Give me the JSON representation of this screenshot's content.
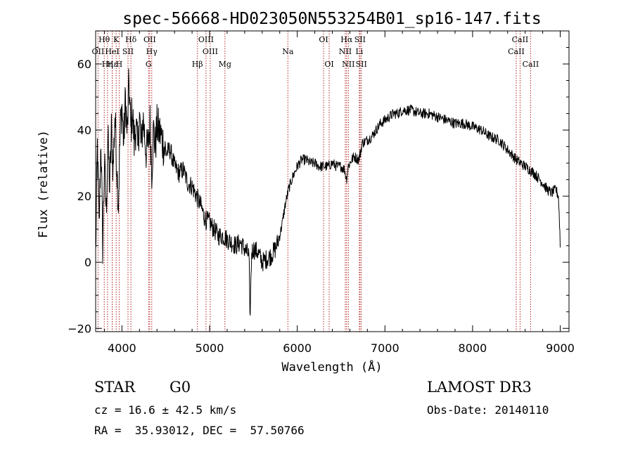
{
  "chart_data": {
    "type": "line",
    "title": "spec-56668-HD023050N553254B01_sp16-147.fits",
    "xlabel": "Wavelength (Å)",
    "ylabel": "Flux (relative)",
    "xlim": [
      3700,
      9100
    ],
    "ylim": [
      -21,
      70
    ],
    "x_ticks": [
      4000,
      5000,
      6000,
      7000,
      8000,
      9000
    ],
    "y_ticks": [
      -20,
      0,
      20,
      40,
      60
    ],
    "x_tick_labels": [
      "4000",
      "5000",
      "6000",
      "7000",
      "8000",
      "9000"
    ],
    "y_tick_labels": [
      "−20",
      "0",
      "20",
      "40",
      "60"
    ],
    "grid": false,
    "line_color": "#000000",
    "marker_color": "#b22222",
    "spectrum_anchors": [
      [
        3700,
        2
      ],
      [
        3720,
        35
      ],
      [
        3740,
        10
      ],
      [
        3760,
        38
      ],
      [
        3780,
        5
      ],
      [
        3800,
        30
      ],
      [
        3820,
        15
      ],
      [
        3840,
        38
      ],
      [
        3860,
        22
      ],
      [
        3880,
        40
      ],
      [
        3900,
        28
      ],
      [
        3920,
        45
      ],
      [
        3940,
        30
      ],
      [
        3960,
        18
      ],
      [
        3980,
        40
      ],
      [
        4000,
        47
      ],
      [
        4020,
        36
      ],
      [
        4040,
        50
      ],
      [
        4060,
        38
      ],
      [
        4080,
        55
      ],
      [
        4100,
        40
      ],
      [
        4120,
        46
      ],
      [
        4140,
        36
      ],
      [
        4160,
        42
      ],
      [
        4180,
        34
      ],
      [
        4200,
        45
      ],
      [
        4220,
        34
      ],
      [
        4240,
        44
      ],
      [
        4260,
        38
      ],
      [
        4280,
        33
      ],
      [
        4300,
        36
      ],
      [
        4320,
        42
      ],
      [
        4340,
        28
      ],
      [
        4360,
        40
      ],
      [
        4380,
        35
      ],
      [
        4400,
        41
      ],
      [
        4450,
        38
      ],
      [
        4500,
        33
      ],
      [
        4550,
        34
      ],
      [
        4600,
        29
      ],
      [
        4650,
        27
      ],
      [
        4700,
        28
      ],
      [
        4750,
        24
      ],
      [
        4800,
        23
      ],
      [
        4850,
        20
      ],
      [
        4900,
        17
      ],
      [
        4950,
        13
      ],
      [
        5000,
        12
      ],
      [
        5050,
        10
      ],
      [
        5100,
        8
      ],
      [
        5150,
        8
      ],
      [
        5200,
        7
      ],
      [
        5250,
        6
      ],
      [
        5300,
        5
      ],
      [
        5350,
        6
      ],
      [
        5400,
        4
      ],
      [
        5450,
        2
      ],
      [
        5460,
        -18
      ],
      [
        5480,
        3
      ],
      [
        5500,
        4
      ],
      [
        5550,
        3
      ],
      [
        5600,
        0
      ],
      [
        5650,
        1
      ],
      [
        5700,
        2
      ],
      [
        5750,
        4
      ],
      [
        5800,
        8
      ],
      [
        5830,
        12
      ],
      [
        5860,
        17
      ],
      [
        5900,
        22
      ],
      [
        5950,
        26
      ],
      [
        6000,
        29
      ],
      [
        6050,
        31
      ],
      [
        6100,
        31
      ],
      [
        6150,
        30
      ],
      [
        6200,
        30
      ],
      [
        6250,
        29
      ],
      [
        6300,
        29
      ],
      [
        6350,
        29
      ],
      [
        6400,
        30
      ],
      [
        6450,
        29
      ],
      [
        6500,
        29
      ],
      [
        6540,
        28
      ],
      [
        6562,
        25
      ],
      [
        6580,
        29
      ],
      [
        6620,
        31
      ],
      [
        6650,
        32
      ],
      [
        6700,
        31
      ],
      [
        6720,
        33
      ],
      [
        6740,
        36
      ],
      [
        6800,
        37
      ],
      [
        6850,
        38
      ],
      [
        6900,
        40
      ],
      [
        6950,
        42
      ],
      [
        7000,
        43
      ],
      [
        7050,
        44
      ],
      [
        7100,
        45
      ],
      [
        7150,
        45
      ],
      [
        7200,
        46
      ],
      [
        7300,
        46
      ],
      [
        7400,
        45
      ],
      [
        7500,
        45
      ],
      [
        7600,
        44
      ],
      [
        7700,
        43
      ],
      [
        7800,
        42
      ],
      [
        7900,
        42
      ],
      [
        8000,
        41
      ],
      [
        8100,
        40
      ],
      [
        8200,
        38
      ],
      [
        8300,
        37
      ],
      [
        8400,
        34
      ],
      [
        8500,
        31
      ],
      [
        8600,
        29
      ],
      [
        8700,
        27
      ],
      [
        8800,
        24
      ],
      [
        8850,
        22
      ],
      [
        8900,
        21
      ],
      [
        8950,
        22
      ],
      [
        8980,
        20
      ],
      [
        8995,
        10
      ],
      [
        9000,
        5
      ]
    ],
    "annotations": [
      {
        "label": "Hθ",
        "x": 3798,
        "row": 0
      },
      {
        "label": "OII",
        "x": 3727,
        "row": 1
      },
      {
        "label": "Hη",
        "x": 3835,
        "row": 2
      },
      {
        "label": "Hε",
        "x": 3889,
        "row": 2
      },
      {
        "label": "K",
        "x": 3934,
        "row": 0
      },
      {
        "label": "HeI",
        "x": 3889,
        "row": 1
      },
      {
        "label": "SII",
        "x": 4069,
        "row": 1
      },
      {
        "label": "H",
        "x": 3968,
        "row": 2
      },
      {
        "label": "Hδ",
        "x": 4102,
        "row": 0
      },
      {
        "label": "OII",
        "x": 4317,
        "row": 0
      },
      {
        "label": "Hγ",
        "x": 4340,
        "row": 1
      },
      {
        "label": "G",
        "x": 4304,
        "row": 2
      },
      {
        "label": "OIII",
        "x": 4959,
        "row": 0
      },
      {
        "label": "OIII",
        "x": 5007,
        "row": 1
      },
      {
        "label": "Hβ",
        "x": 4861,
        "row": 2
      },
      {
        "label": "Mg",
        "x": 5175,
        "row": 2
      },
      {
        "label": "Na",
        "x": 5893,
        "row": 1
      },
      {
        "label": "OI",
        "x": 6300,
        "row": 0
      },
      {
        "label": "OI",
        "x": 6364,
        "row": 2
      },
      {
        "label": "Hα",
        "x": 6563,
        "row": 0
      },
      {
        "label": "NII",
        "x": 6548,
        "row": 1
      },
      {
        "label": "NII",
        "x": 6583,
        "row": 2
      },
      {
        "label": "SII",
        "x": 6716,
        "row": 0
      },
      {
        "label": "Li",
        "x": 6708,
        "row": 1
      },
      {
        "label": "SII",
        "x": 6731,
        "row": 2
      },
      {
        "label": "CaII",
        "x": 8542,
        "row": 0
      },
      {
        "label": "CaII",
        "x": 8498,
        "row": 1
      },
      {
        "label": "CaII",
        "x": 8662,
        "row": 2
      }
    ]
  },
  "info": {
    "object_class": "STAR",
    "subclass": "G0",
    "survey": "LAMOST DR3",
    "cz": "cz = 16.6 ± 42.5 km/s",
    "obs_date": "Obs-Date: 20140110",
    "coords": "RA =  35.93012, DEC =  57.50766"
  }
}
